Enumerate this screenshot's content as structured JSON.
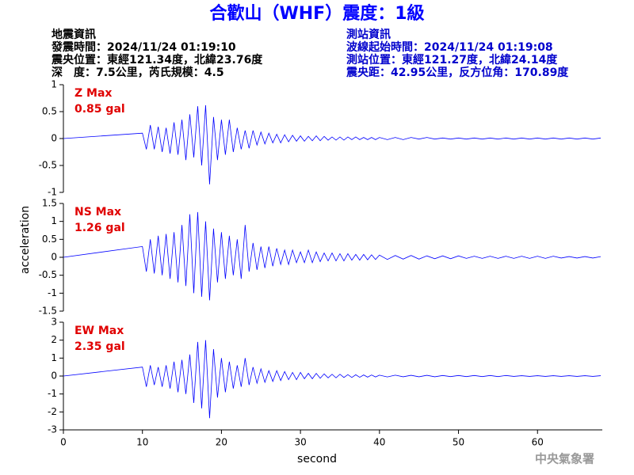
{
  "header": {
    "title": "合歡山（WHF）震度：1級",
    "left": [
      "地震資訊",
      "發震時間：2024/11/24 01:19:10",
      "震央位置：東經121.34度，北緯23.76度",
      "深　度：7.5公里，芮氏規模：4.5"
    ],
    "right": [
      "測站資訊",
      "波線起始時間：2024/11/24 01:19:08",
      "測站位置：東經121.27度，北緯24.14度",
      "震央距：42.95公里，反方位角：170.89度"
    ]
  },
  "footer": "中央氣象署",
  "chart_data": [
    {
      "type": "line",
      "annotations": [
        "Z Max",
        "0.85 gal"
      ],
      "xlim": [
        0,
        68.2
      ],
      "ylim": [
        -1,
        1
      ],
      "yticks": [
        1,
        0.5,
        0,
        -0.5,
        -1
      ],
      "x": [
        0,
        10,
        10.5,
        11,
        11.5,
        12,
        12.5,
        13,
        13.5,
        14,
        14.5,
        15,
        15.5,
        16,
        16.5,
        17,
        17.5,
        18,
        18.5,
        19,
        19.5,
        20,
        20.5,
        21,
        21.5,
        22,
        22.5,
        23,
        23.5,
        24,
        24.5,
        25,
        25.5,
        26,
        26.5,
        27,
        27.5,
        28,
        28.5,
        29,
        29.5,
        30,
        30.5,
        31,
        31.5,
        32,
        32.5,
        33,
        33.5,
        34,
        34.5,
        35,
        35.5,
        36,
        36.5,
        37,
        37.5,
        38,
        38.5,
        39,
        39.5,
        40,
        41,
        42,
        43,
        44,
        45,
        46,
        47,
        48,
        49,
        50,
        51,
        52,
        53,
        54,
        55,
        56,
        57,
        58,
        59,
        60,
        61,
        62,
        63,
        64,
        65,
        66,
        67,
        68
      ],
      "series": [
        {
          "color": "#0000ff",
          "values": [
            0,
            0.1,
            -0.2,
            0.25,
            -0.2,
            0.22,
            -0.25,
            0.2,
            -0.28,
            0.3,
            -0.3,
            0.35,
            -0.4,
            0.45,
            -0.35,
            0.6,
            -0.5,
            0.62,
            -0.85,
            0.4,
            -0.4,
            0.35,
            -0.3,
            0.35,
            -0.25,
            0.2,
            -0.2,
            0.15,
            -0.18,
            0.15,
            -0.12,
            0.12,
            -0.1,
            0.1,
            -0.08,
            0.08,
            -0.08,
            0.07,
            -0.06,
            0.06,
            -0.05,
            0.05,
            -0.05,
            0.04,
            -0.04,
            0.05,
            -0.04,
            0.04,
            -0.03,
            0.03,
            -0.03,
            0.03,
            -0.03,
            0.03,
            -0.02,
            0.03,
            -0.02,
            0.02,
            -0.02,
            0.02,
            -0.02,
            0.02,
            -0.02,
            0.02,
            -0.02,
            0.02,
            -0.01,
            0.02,
            -0.01,
            0.01,
            -0.01,
            0.01,
            -0.01,
            0.01,
            -0.01,
            0.01,
            -0.01,
            0.01,
            -0.01,
            0.01,
            -0.01,
            0.01,
            -0.01,
            0.01,
            -0.01,
            0.01,
            -0.01,
            0.01,
            -0.01,
            0.01
          ]
        }
      ]
    },
    {
      "type": "line",
      "annotations": [
        "NS Max",
        "1.26 gal"
      ],
      "ylabel": "acceleration",
      "xlim": [
        0,
        68.2
      ],
      "ylim": [
        -1.5,
        1.5
      ],
      "yticks": [
        1.5,
        1,
        0.5,
        0,
        -0.5,
        -1,
        -1.5
      ],
      "x": [
        0,
        10,
        10.5,
        11,
        11.5,
        12,
        12.5,
        13,
        13.5,
        14,
        14.5,
        15,
        15.5,
        16,
        16.5,
        17,
        17.5,
        18,
        18.5,
        19,
        19.5,
        20,
        20.5,
        21,
        21.5,
        22,
        22.5,
        23,
        23.5,
        24,
        24.5,
        25,
        25.5,
        26,
        26.5,
        27,
        27.5,
        28,
        28.5,
        29,
        29.5,
        30,
        30.5,
        31,
        31.5,
        32,
        32.5,
        33,
        33.5,
        34,
        34.5,
        35,
        35.5,
        36,
        36.5,
        37,
        37.5,
        38,
        38.5,
        39,
        39.5,
        40,
        41,
        42,
        43,
        44,
        45,
        46,
        47,
        48,
        49,
        50,
        51,
        52,
        53,
        54,
        55,
        56,
        57,
        58,
        59,
        60,
        61,
        62,
        63,
        64,
        65,
        66,
        67,
        68
      ],
      "series": [
        {
          "color": "#0000ff",
          "values": [
            0,
            0.3,
            -0.4,
            0.5,
            -0.45,
            0.6,
            -0.5,
            0.65,
            -0.6,
            0.7,
            -0.7,
            0.9,
            -0.8,
            1.2,
            -1.0,
            1.26,
            -1.1,
            1.0,
            -1.2,
            0.8,
            -0.7,
            0.7,
            -0.6,
            0.6,
            -0.5,
            0.5,
            -0.6,
            0.9,
            -0.4,
            0.4,
            -0.35,
            0.3,
            -0.3,
            0.3,
            -0.25,
            0.25,
            -0.2,
            0.2,
            -0.2,
            0.2,
            -0.15,
            0.15,
            -0.15,
            0.2,
            -0.15,
            0.15,
            -0.12,
            0.12,
            -0.1,
            0.12,
            -0.1,
            0.1,
            -0.1,
            0.1,
            -0.08,
            0.08,
            -0.08,
            0.08,
            -0.07,
            0.07,
            -0.06,
            0.06,
            -0.06,
            0.05,
            -0.05,
            0.05,
            -0.05,
            0.04,
            -0.04,
            0.04,
            -0.04,
            0.04,
            -0.03,
            0.03,
            -0.03,
            0.03,
            -0.03,
            0.03,
            -0.03,
            0.03,
            -0.03,
            0.03,
            -0.03,
            0.03,
            -0.02,
            0.02,
            -0.02,
            0.02,
            -0.02,
            0.02
          ]
        }
      ]
    },
    {
      "type": "line",
      "annotations": [
        "EW Max",
        "2.35 gal"
      ],
      "xlabel": "second",
      "xlim": [
        0,
        68.2
      ],
      "xticks": [
        0,
        10,
        20,
        30,
        40,
        50,
        60
      ],
      "ylim": [
        -3,
        3
      ],
      "yticks": [
        3,
        2,
        1,
        0,
        -1,
        -2,
        -3
      ],
      "x": [
        0,
        10,
        10.5,
        11,
        11.5,
        12,
        12.5,
        13,
        13.5,
        14,
        14.5,
        15,
        15.5,
        16,
        16.5,
        17,
        17.5,
        18,
        18.5,
        19,
        19.5,
        20,
        20.5,
        21,
        21.5,
        22,
        22.5,
        23,
        23.5,
        24,
        24.5,
        25,
        25.5,
        26,
        26.5,
        27,
        27.5,
        28,
        28.5,
        29,
        29.5,
        30,
        30.5,
        31,
        31.5,
        32,
        32.5,
        33,
        33.5,
        34,
        34.5,
        35,
        35.5,
        36,
        36.5,
        37,
        37.5,
        38,
        38.5,
        39,
        39.5,
        40,
        41,
        42,
        43,
        44,
        45,
        46,
        47,
        48,
        49,
        50,
        51,
        52,
        53,
        54,
        55,
        56,
        57,
        58,
        59,
        60,
        61,
        62,
        63,
        64,
        65,
        66,
        67,
        68
      ],
      "series": [
        {
          "color": "#0000ff",
          "values": [
            0,
            0.5,
            -0.6,
            0.6,
            -0.5,
            0.5,
            -0.6,
            0.6,
            -0.7,
            0.8,
            -0.9,
            0.9,
            -1.0,
            1.2,
            -1.5,
            1.9,
            -1.8,
            2.0,
            -2.35,
            1.5,
            -1.2,
            1.0,
            -0.9,
            0.8,
            -0.7,
            0.6,
            -0.6,
            1.0,
            -0.5,
            0.5,
            -0.4,
            0.4,
            -0.35,
            0.3,
            -0.3,
            0.3,
            -0.25,
            0.25,
            -0.2,
            0.2,
            -0.2,
            0.2,
            -0.15,
            0.15,
            -0.15,
            0.15,
            -0.12,
            0.12,
            -0.1,
            0.1,
            -0.1,
            0.1,
            -0.08,
            0.08,
            -0.08,
            0.07,
            -0.07,
            0.06,
            -0.06,
            0.06,
            -0.05,
            0.05,
            -0.05,
            0.05,
            -0.04,
            0.04,
            -0.04,
            0.04,
            -0.04,
            0.03,
            -0.03,
            0.03,
            -0.03,
            0.03,
            -0.03,
            0.03,
            -0.03,
            0.03,
            -0.02,
            0.02,
            -0.02,
            0.02,
            -0.02,
            0.02,
            -0.02,
            0.02,
            -0.02,
            0.02,
            -0.02,
            0.02
          ]
        }
      ]
    }
  ]
}
